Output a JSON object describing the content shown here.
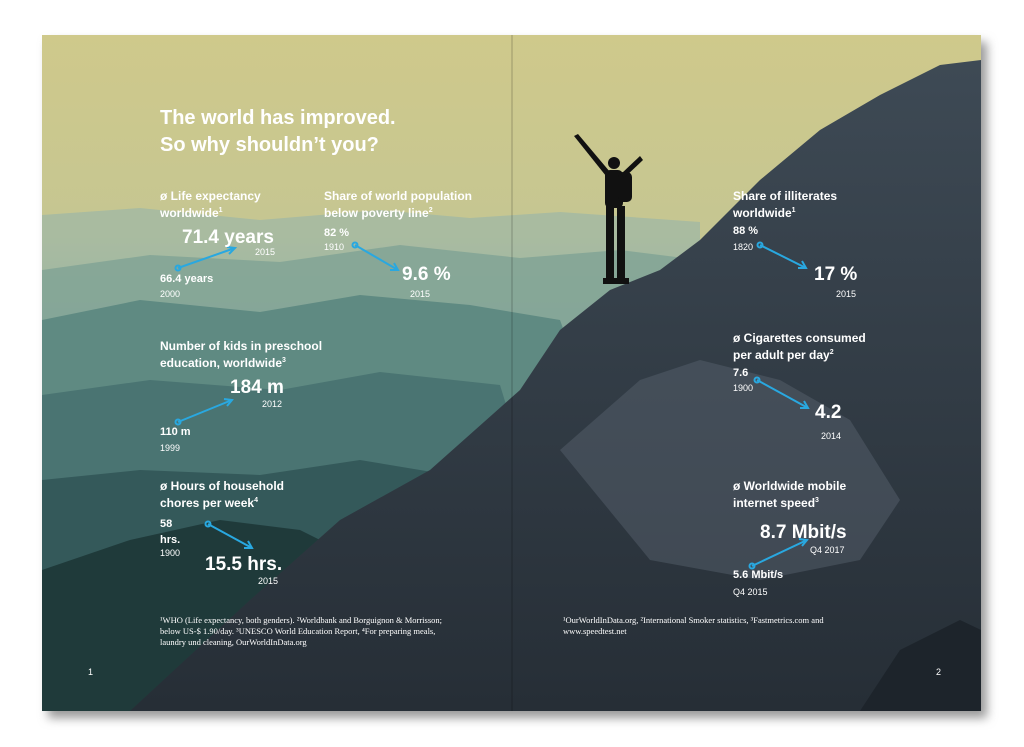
{
  "title_lines": [
    "The world has improved.",
    "So why shouldn’t you?"
  ],
  "stats": [
    {
      "label_lines": [
        "ø Life expectancy",
        "worldwide"
      ],
      "note": "1",
      "start_value": "66.4 years",
      "start_year": "2000",
      "end_value": "71.4 years",
      "end_year": "2015"
    },
    {
      "label_lines": [
        "Share of world population",
        "below poverty line"
      ],
      "note": "2",
      "start_value": "82 %",
      "start_year": "1910",
      "end_value": "9.6 %",
      "end_year": "2015"
    },
    {
      "label_lines": [
        "Number of kids in preschool",
        "education, worldwide"
      ],
      "note": "3",
      "start_value": "110 m",
      "start_year": "1999",
      "end_value": "184 m",
      "end_year": "2012"
    },
    {
      "label_lines": [
        "ø Hours of household",
        "chores per week"
      ],
      "note": "4",
      "start_value": "58 hrs.",
      "start_year": "1900",
      "end_value": "15.5 hrs.",
      "end_year": "2015"
    },
    {
      "label_lines": [
        "Share of illiterates",
        "worldwide"
      ],
      "note": "1",
      "start_value": "88 %",
      "start_year": "1820",
      "end_value": "17 %",
      "end_year": "2015"
    },
    {
      "label_lines": [
        "ø Cigarettes consumed",
        "per adult per day"
      ],
      "note": "2",
      "start_value": "7.6",
      "start_year": "1900",
      "end_value": "4.2",
      "end_year": "2014"
    },
    {
      "label_lines": [
        "ø Worldwide mobile",
        "internet speed"
      ],
      "note": "3",
      "start_value": "5.6 Mbit/s",
      "start_year": "Q4 2015",
      "end_value": "8.7 Mbit/s",
      "end_year": "Q4 2017"
    }
  ],
  "footnotes": {
    "left": "¹WHO (Life expectancy, both genders). ²Worldbank and Borguignon & Morrisson; below US-$ 1.90/day. ³UNESCO World Education Report, ⁴For preparing meals, laundry und cleaning, OurWorldInData.org",
    "right": "¹OurWorldInData.org, ²International Smoker statistics, ³Fastmetrics.com and www.speedtest.net"
  },
  "page_numbers": [
    "1",
    "2"
  ]
}
